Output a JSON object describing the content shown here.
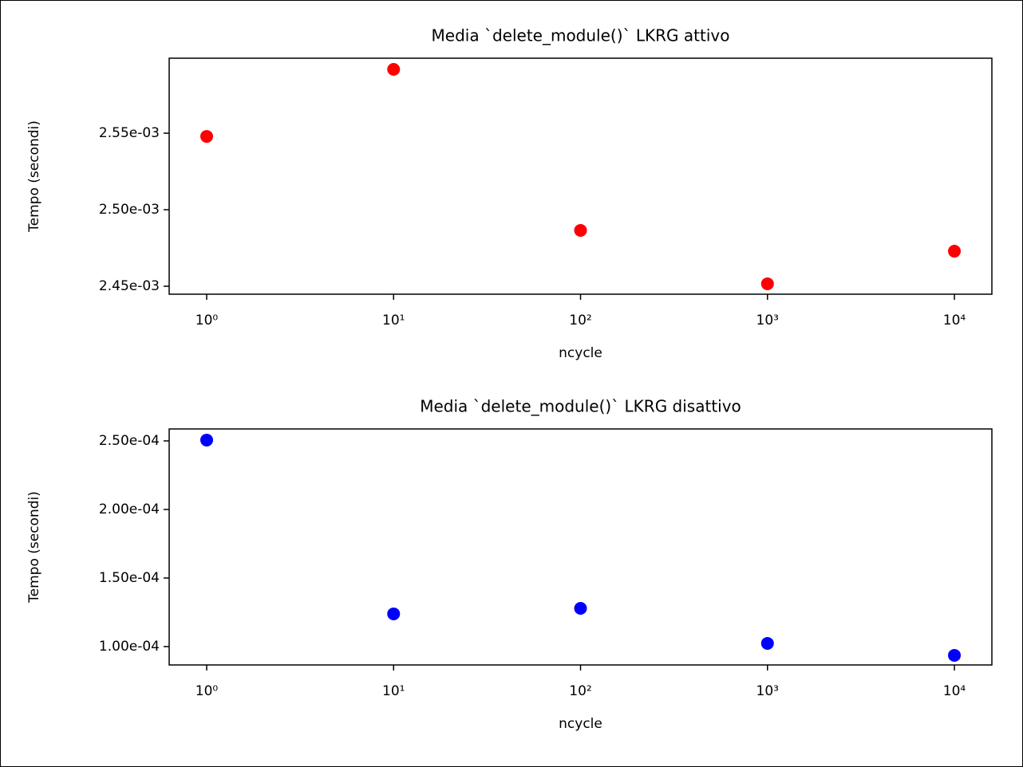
{
  "chart_data": [
    {
      "type": "scatter",
      "title": "Media `delete_module()` LKRG attivo",
      "x_label": "ncycle",
      "y_label": "Tempo (secondi)",
      "x_scale": "log",
      "color": "#ff0000",
      "x": [
        1,
        10,
        100,
        1000,
        10000
      ],
      "values": [
        0.0025479,
        0.0025917,
        0.0024865,
        0.0024516,
        0.0024729
      ],
      "xlim": [
        0.63,
        15868
      ],
      "ylim": [
        0.0024448,
        0.002599
      ],
      "xticks": [
        {
          "value": 1,
          "label": "10⁰"
        },
        {
          "value": 10,
          "label": "10¹"
        },
        {
          "value": 100,
          "label": "10²"
        },
        {
          "value": 1000,
          "label": "10³"
        },
        {
          "value": 10000,
          "label": "10⁴"
        }
      ],
      "yticks": [
        {
          "value": 0.00245,
          "label": "2.45e-03"
        },
        {
          "value": 0.0025,
          "label": "2.50e-03"
        },
        {
          "value": 0.00255,
          "label": "2.55e-03"
        }
      ]
    },
    {
      "type": "scatter",
      "title": "Media `delete_module()` LKRG disattivo",
      "x_label": "ncycle",
      "y_label": "Tempo (secondi)",
      "x_scale": "log",
      "color": "#0000ff",
      "x": [
        1,
        10,
        100,
        1000,
        10000
      ],
      "values": [
        0.0002506,
        0.00012384,
        0.0001279,
        0.00010233,
        9.36e-05
      ],
      "xlim": [
        0.63,
        15868
      ],
      "ylim": [
        8.66e-05,
        0.00025872
      ],
      "xticks": [
        {
          "value": 1,
          "label": "10⁰"
        },
        {
          "value": 10,
          "label": "10¹"
        },
        {
          "value": 100,
          "label": "10²"
        },
        {
          "value": 1000,
          "label": "10³"
        },
        {
          "value": 10000,
          "label": "10⁴"
        }
      ],
      "yticks": [
        {
          "value": 0.0001,
          "label": "1.00e-04"
        },
        {
          "value": 0.00015,
          "label": "1.50e-04"
        },
        {
          "value": 0.0002,
          "label": "2.00e-04"
        },
        {
          "value": 0.00025,
          "label": "2.50e-04"
        }
      ]
    }
  ]
}
